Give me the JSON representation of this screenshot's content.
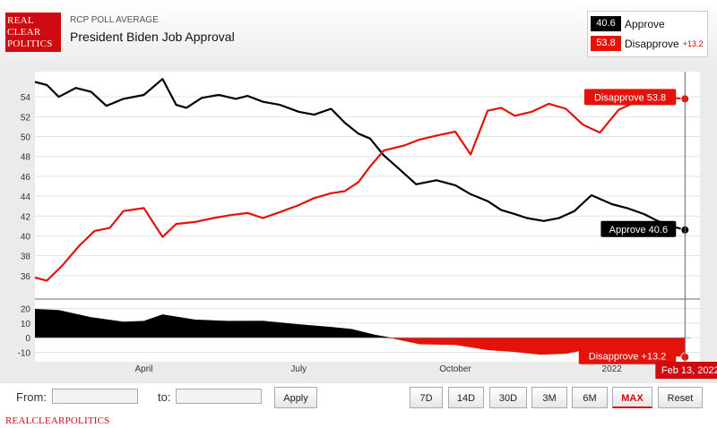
{
  "header": {
    "logo_lines": [
      "REAL",
      "CLEAR",
      "POLITICS"
    ],
    "pre_title": "RCP POLL AVERAGE",
    "title": "President Biden Job Approval"
  },
  "legend": {
    "approve": {
      "value": "40.6",
      "label": "Approve",
      "color": "#000000"
    },
    "disapprove": {
      "value": "53.8",
      "label": "Disapprove",
      "spread": "+13.2",
      "color": "#e3120b"
    }
  },
  "chart_data": [
    {
      "type": "line",
      "title": "",
      "ylim": [
        34,
        56
      ],
      "yticks": [
        36,
        38,
        40,
        42,
        44,
        46,
        48,
        50,
        52,
        54
      ],
      "grid": true,
      "series": [
        {
          "name": "Approve",
          "color": "#000000",
          "x": [
            "2021-01-27",
            "2021-02-03",
            "2021-02-10",
            "2021-02-20",
            "2021-03-01",
            "2021-03-10",
            "2021-03-20",
            "2021-04-01",
            "2021-04-12",
            "2021-04-20",
            "2021-04-26",
            "2021-05-05",
            "2021-05-15",
            "2021-05-25",
            "2021-06-01",
            "2021-06-10",
            "2021-06-20",
            "2021-07-01",
            "2021-07-10",
            "2021-07-20",
            "2021-07-28",
            "2021-08-05",
            "2021-08-12",
            "2021-08-20",
            "2021-08-28",
            "2021-09-08",
            "2021-09-20",
            "2021-10-01",
            "2021-10-10",
            "2021-10-20",
            "2021-10-28",
            "2021-11-05",
            "2021-11-12",
            "2021-11-22",
            "2021-12-01",
            "2021-12-10",
            "2021-12-20",
            "2022-01-01",
            "2022-01-10",
            "2022-01-20",
            "2022-01-28",
            "2022-02-05",
            "2022-02-13"
          ],
          "values": [
            55.5,
            55.2,
            54.0,
            54.9,
            54.5,
            53.1,
            53.8,
            54.2,
            55.8,
            53.2,
            52.9,
            53.9,
            54.2,
            53.8,
            54.1,
            53.5,
            53.2,
            52.5,
            52.2,
            52.8,
            51.4,
            50.3,
            49.8,
            48.1,
            46.9,
            45.2,
            45.6,
            45.1,
            44.2,
            43.5,
            42.6,
            42.2,
            41.8,
            41.5,
            41.8,
            42.5,
            44.1,
            43.2,
            42.8,
            42.2,
            41.5,
            41.0,
            40.6
          ]
        },
        {
          "name": "Disapprove",
          "color": "#e3120b",
          "x": [
            "2021-01-27",
            "2021-02-03",
            "2021-02-12",
            "2021-02-22",
            "2021-03-03",
            "2021-03-12",
            "2021-03-20",
            "2021-04-01",
            "2021-04-12",
            "2021-04-20",
            "2021-05-01",
            "2021-05-12",
            "2021-05-22",
            "2021-06-01",
            "2021-06-10",
            "2021-06-20",
            "2021-07-01",
            "2021-07-10",
            "2021-07-20",
            "2021-07-28",
            "2021-08-05",
            "2021-08-12",
            "2021-08-20",
            "2021-09-01",
            "2021-09-10",
            "2021-09-20",
            "2021-10-01",
            "2021-10-10",
            "2021-10-20",
            "2021-10-28",
            "2021-11-05",
            "2021-11-15",
            "2021-11-25",
            "2021-12-05",
            "2021-12-15",
            "2021-12-25",
            "2022-01-05",
            "2022-01-15",
            "2022-01-25",
            "2022-02-05",
            "2022-02-13"
          ],
          "values": [
            35.8,
            35.5,
            37.0,
            39.0,
            40.5,
            40.8,
            42.5,
            42.8,
            39.9,
            41.2,
            41.4,
            41.8,
            42.1,
            42.3,
            41.8,
            42.4,
            43.1,
            43.8,
            44.3,
            44.5,
            45.4,
            47.0,
            48.6,
            49.1,
            49.7,
            50.1,
            50.5,
            48.2,
            52.6,
            52.9,
            52.1,
            52.5,
            53.3,
            52.8,
            51.2,
            50.4,
            52.7,
            53.5,
            54.4,
            53.9,
            53.8
          ]
        }
      ],
      "annotations": [
        {
          "label": "Disapprove 53.8",
          "series": "Disapprove"
        },
        {
          "label": "Approve 40.6",
          "series": "Approve"
        }
      ]
    },
    {
      "type": "area",
      "ylim": [
        -14,
        24
      ],
      "yticks": [
        20,
        10,
        0,
        -10
      ],
      "x": [
        "2021-01-27",
        "2021-02-10",
        "2021-03-01",
        "2021-03-20",
        "2021-04-01",
        "2021-04-12",
        "2021-05-01",
        "2021-05-20",
        "2021-06-10",
        "2021-07-01",
        "2021-07-20",
        "2021-08-01",
        "2021-08-15",
        "2021-08-25",
        "2021-09-10",
        "2021-10-01",
        "2021-10-20",
        "2021-11-05",
        "2021-11-20",
        "2021-12-05",
        "2021-12-20",
        "2022-01-05",
        "2022-01-25",
        "2022-02-13"
      ],
      "values": [
        19.7,
        19.0,
        14.0,
        11.0,
        11.5,
        16.0,
        12.4,
        11.5,
        11.6,
        9.2,
        7.4,
        6.0,
        2.0,
        -0.5,
        -4.5,
        -5.0,
        -8.5,
        -9.8,
        -11.6,
        -11.0,
        -7.6,
        -9.0,
        -12.0,
        -13.2
      ],
      "annotation": {
        "label": "Disapprove +13.2"
      }
    }
  ],
  "x_axis": {
    "ticks": [
      {
        "label": "April",
        "date": "2021-04-01"
      },
      {
        "label": "July",
        "date": "2021-07-01"
      },
      {
        "label": "October",
        "date": "2021-10-01"
      },
      {
        "label": "2022",
        "date": "2022-01-01"
      }
    ],
    "date_range": [
      "2021-01-27",
      "2022-02-16"
    ],
    "cursor_date": "2022-02-13",
    "cursor_label": "Feb 13, 2022"
  },
  "controls": {
    "from_label": "From:",
    "to_label": "to:",
    "apply_label": "Apply",
    "ranges": [
      "7D",
      "14D",
      "30D",
      "3M",
      "6M",
      "MAX",
      "Reset"
    ],
    "active_range": "MAX"
  },
  "footer": {
    "brand": "REALCLEARPOLITICS"
  }
}
